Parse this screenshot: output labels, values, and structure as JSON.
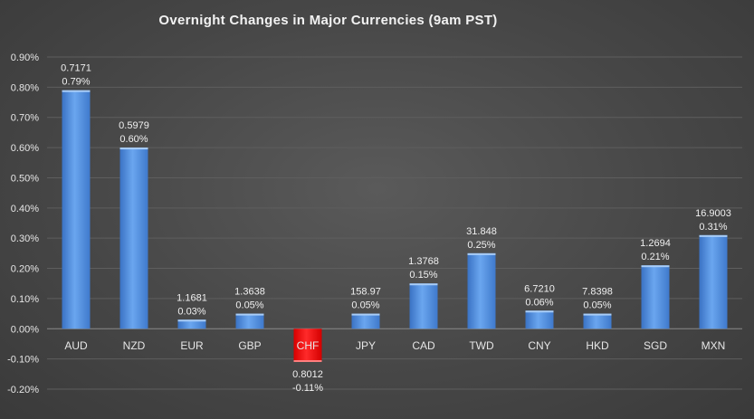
{
  "chart_data": {
    "type": "bar",
    "title": "Overnight Changes in Major Currencies (9am PST)",
    "xlabel": "",
    "ylabel": "",
    "ylim": [
      -0.2,
      0.9
    ],
    "yticks": [
      0.9,
      0.8,
      0.7,
      0.6,
      0.5,
      0.4,
      0.3,
      0.2,
      0.1,
      0.0,
      -0.1,
      -0.2
    ],
    "ytick_labels": [
      "0.90%",
      "0.80%",
      "0.70%",
      "0.60%",
      "0.50%",
      "0.40%",
      "0.30%",
      "0.20%",
      "0.10%",
      "0.00%",
      "-0.10%",
      "-0.20%"
    ],
    "grid": true,
    "categories": [
      "AUD",
      "NZD",
      "EUR",
      "GBP",
      "CHF",
      "JPY",
      "CAD",
      "TWD",
      "CNY",
      "HKD",
      "SGD",
      "MXN"
    ],
    "values": [
      0.79,
      0.6,
      0.03,
      0.05,
      -0.11,
      0.05,
      0.15,
      0.25,
      0.06,
      0.05,
      0.21,
      0.31
    ],
    "rates": [
      "0.7171",
      "0.5979",
      "1.1681",
      "1.3638",
      "0.8012",
      "158.97",
      "1.3768",
      "31.848",
      "6.7210",
      "7.8398",
      "1.2694",
      "16.9003"
    ],
    "pct_labels": [
      "0.79%",
      "0.60%",
      "0.03%",
      "0.05%",
      "-0.11%",
      "0.05%",
      "0.15%",
      "0.25%",
      "0.06%",
      "0.05%",
      "0.21%",
      "0.31%"
    ],
    "colors": {
      "positive": "#4f8fe0",
      "negative": "#ff1a1a"
    }
  }
}
